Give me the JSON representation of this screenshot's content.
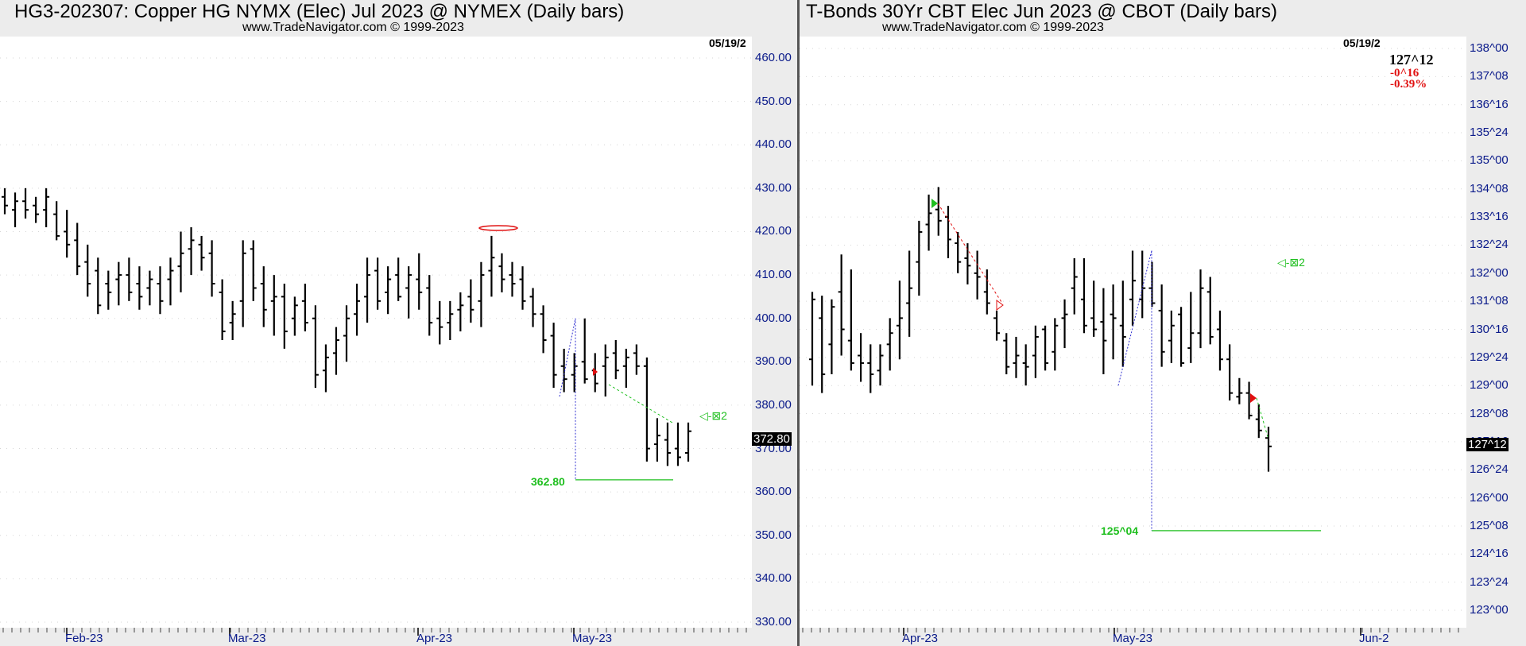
{
  "colors": {
    "bars": "#000000",
    "axis_text": "#0a1a8a",
    "target": "#1fbf1f",
    "down_text": "#e01010",
    "header_bg": "#ececec",
    "projection": "#3030d0"
  },
  "left": {
    "title": "HG3-202307:  Copper HG NYMX (Elec) Jul 2023 @ NYMEX  (Daily bars)",
    "subtitle": "www.TradeNavigator.com © 1999-2023",
    "date_label": "05/19/2",
    "last_price": "372.80",
    "target_label": "362.80",
    "marker_label": "◁-⊠2",
    "y_ticks": [
      "460.00",
      "450.00",
      "440.00",
      "430.00",
      "420.00",
      "410.00",
      "400.00",
      "390.00",
      "380.00",
      "370.00",
      "360.00",
      "350.00",
      "340.00",
      "330.00"
    ],
    "x_ticks": [
      "Feb-23",
      "Mar-23",
      "Apr-23",
      "May-23"
    ]
  },
  "right": {
    "title": "T-Bonds 30Yr CBT Elec Jun 2023 @ CBOT  (Daily bars)",
    "subtitle": "www.TradeNavigator.com © 1999-2023",
    "date_label": "05/19/2",
    "quote_price": "127^12",
    "quote_change": "-0^16",
    "quote_pct": "-0.39%",
    "last_price": "127^12",
    "target_label": "125^04",
    "marker_label": "◁-⊠2",
    "y_ticks": [
      "138^00",
      "137^08",
      "136^16",
      "135^24",
      "135^00",
      "134^08",
      "133^16",
      "132^24",
      "132^00",
      "131^08",
      "130^16",
      "129^24",
      "129^00",
      "128^08",
      "127^16",
      "126^24",
      "126^00",
      "125^08",
      "124^16",
      "123^24",
      "123^00"
    ],
    "x_ticks": [
      "Apr-23",
      "May-23",
      "Jun-2"
    ]
  },
  "chart_data": [
    {
      "type": "ohlc",
      "title": "HG3-202307:  Copper HG NYMX (Elec) Jul 2023 @ NYMEX  (Daily bars)",
      "ylim": [
        330,
        460
      ],
      "x_ticks": [
        "Feb-23",
        "Mar-23",
        "Apr-23",
        "May-23"
      ],
      "last": 372.8,
      "target": 362.8,
      "bars": [
        [
          428,
          424,
          430,
          426
        ],
        [
          425,
          421,
          429,
          427
        ],
        [
          427,
          423,
          430,
          425
        ],
        [
          426,
          422,
          428,
          424
        ],
        [
          425,
          421,
          430,
          428
        ],
        [
          424,
          418,
          427,
          419
        ],
        [
          420,
          414,
          425,
          417
        ],
        [
          418,
          410,
          422,
          412
        ],
        [
          413,
          405,
          417,
          408
        ],
        [
          411,
          401,
          414,
          403
        ],
        [
          408,
          402,
          411,
          406
        ],
        [
          409,
          403,
          413,
          410
        ],
        [
          410,
          404,
          414,
          406
        ],
        [
          408,
          402,
          412,
          405
        ],
        [
          407,
          403,
          411,
          409
        ],
        [
          408,
          401,
          412,
          404
        ],
        [
          409,
          403,
          414,
          411
        ],
        [
          412,
          406,
          420,
          415
        ],
        [
          416,
          410,
          421,
          418
        ],
        [
          417,
          411,
          419,
          414
        ],
        [
          415,
          405,
          418,
          408
        ],
        [
          406,
          395,
          409,
          397
        ],
        [
          399,
          395,
          404,
          401
        ],
        [
          404,
          398,
          418,
          415
        ],
        [
          416,
          404,
          418,
          407
        ],
        [
          408,
          398,
          412,
          402
        ],
        [
          404,
          396,
          410,
          405
        ],
        [
          405,
          393,
          408,
          397
        ],
        [
          400,
          396,
          405,
          403
        ],
        [
          404,
          397,
          408,
          399
        ],
        [
          400,
          384,
          403,
          387
        ],
        [
          388,
          383,
          394,
          391
        ],
        [
          392,
          387,
          398,
          395
        ],
        [
          396,
          390,
          403,
          400
        ],
        [
          401,
          396,
          408,
          404
        ],
        [
          405,
          399,
          414,
          410
        ],
        [
          411,
          402,
          414,
          404
        ],
        [
          406,
          401,
          412,
          409
        ],
        [
          410,
          404,
          414,
          405
        ],
        [
          407,
          400,
          412,
          410
        ],
        [
          409,
          402,
          415,
          406
        ],
        [
          407,
          396,
          410,
          399
        ],
        [
          400,
          394,
          404,
          398
        ],
        [
          399,
          395,
          404,
          401
        ],
        [
          402,
          397,
          406,
          403
        ],
        [
          405,
          399,
          409,
          402
        ],
        [
          404,
          398,
          413,
          410
        ],
        [
          411,
          405,
          419,
          414
        ],
        [
          412,
          406,
          415,
          409
        ],
        [
          410,
          405,
          413,
          408
        ],
        [
          409,
          402,
          412,
          404
        ],
        [
          405,
          398,
          407,
          401
        ],
        [
          401,
          392,
          403,
          395
        ],
        [
          396,
          384,
          399,
          387
        ],
        [
          389,
          383,
          393,
          386
        ],
        [
          387,
          383,
          392,
          389
        ],
        [
          390,
          385,
          400,
          386
        ],
        [
          388,
          383,
          392,
          385
        ],
        [
          389,
          382,
          394,
          391
        ],
        [
          392,
          386,
          395,
          388
        ],
        [
          389,
          384,
          393,
          391
        ],
        [
          392,
          387,
          394,
          389
        ],
        [
          389,
          367,
          391,
          370
        ],
        [
          371,
          367,
          377,
          373
        ],
        [
          372,
          366,
          376,
          369
        ],
        [
          370,
          366,
          376,
          368
        ],
        [
          369,
          367,
          376,
          374
        ]
      ]
    },
    {
      "type": "ohlc",
      "title": "T-Bonds 30Yr CBT Elec Jun 2023 @ CBOT  (Daily bars)",
      "ylim": [
        123.0,
        138.0
      ],
      "x_ticks": [
        "Apr-23",
        "May-23",
        "Jun-2"
      ],
      "last": 127.375,
      "change": -0.5,
      "change_pct": -0.39,
      "target": 125.125,
      "bars": [
        [
          129.7,
          129.0,
          131.5,
          131.3
        ],
        [
          130.8,
          128.8,
          131.4,
          129.3
        ],
        [
          130.1,
          129.3,
          131.3,
          131.1
        ],
        [
          131.5,
          129.8,
          132.5,
          130.5
        ],
        [
          130.2,
          129.4,
          132.1,
          129.6
        ],
        [
          129.8,
          129.1,
          130.4,
          129.6
        ],
        [
          129.6,
          128.8,
          130.1,
          129.3
        ],
        [
          129.4,
          129.0,
          130.1,
          129.8
        ],
        [
          130.1,
          129.4,
          130.8,
          130.4
        ],
        [
          130.6,
          129.7,
          131.8,
          130.8
        ],
        [
          131.2,
          130.3,
          132.6,
          131.6
        ],
        [
          132.3,
          131.4,
          133.4,
          133.1
        ],
        [
          133.3,
          132.6,
          134.1,
          133.6
        ],
        [
          133.7,
          133.0,
          134.3,
          133.4
        ],
        [
          133.5,
          132.4,
          133.8,
          132.9
        ],
        [
          132.8,
          132.0,
          133.1,
          132.3
        ],
        [
          132.4,
          131.7,
          132.8,
          132.2
        ],
        [
          132.0,
          131.3,
          132.6,
          131.9
        ],
        [
          131.5,
          130.9,
          132.1,
          131.2
        ],
        [
          130.8,
          130.2,
          131.0,
          130.4
        ],
        [
          130.2,
          129.3,
          130.4,
          129.5
        ],
        [
          129.6,
          129.2,
          130.3,
          129.8
        ],
        [
          129.6,
          129.0,
          130.1,
          129.5
        ],
        [
          129.8,
          129.2,
          130.6,
          130.3
        ],
        [
          130.5,
          129.4,
          130.6,
          129.6
        ],
        [
          129.9,
          129.4,
          130.8,
          130.6
        ],
        [
          130.8,
          130.0,
          131.3,
          130.9
        ],
        [
          131.6,
          130.9,
          132.4,
          131.9
        ],
        [
          131.3,
          130.4,
          132.4,
          130.6
        ],
        [
          130.8,
          130.3,
          131.8,
          130.5
        ],
        [
          130.7,
          129.3,
          131.6,
          130.2
        ],
        [
          130.9,
          129.7,
          131.7,
          130.8
        ],
        [
          130.6,
          129.5,
          131.8,
          130.3
        ],
        [
          131.3,
          130.6,
          132.6,
          131.8
        ],
        [
          131.3,
          130.8,
          132.6,
          131.6
        ],
        [
          131.6,
          131.1,
          132.3,
          131.2
        ],
        [
          131.0,
          129.5,
          131.7,
          129.9
        ],
        [
          130.2,
          129.6,
          131.0,
          130.6
        ],
        [
          130.9,
          129.5,
          131.1,
          129.6
        ],
        [
          130.0,
          129.6,
          131.5,
          130.4
        ],
        [
          130.4,
          130.0,
          132.1,
          131.6
        ],
        [
          131.5,
          130.1,
          131.9,
          130.3
        ],
        [
          130.5,
          129.4,
          131.0,
          129.7
        ],
        [
          129.7,
          128.6,
          130.1,
          128.8
        ],
        [
          128.7,
          128.5,
          129.2,
          128.8
        ],
        [
          128.8,
          128.1,
          129.1,
          128.2
        ],
        [
          128.1,
          127.6,
          128.5,
          127.8
        ],
        [
          127.6,
          126.7,
          127.9,
          127.375
        ]
      ]
    }
  ]
}
